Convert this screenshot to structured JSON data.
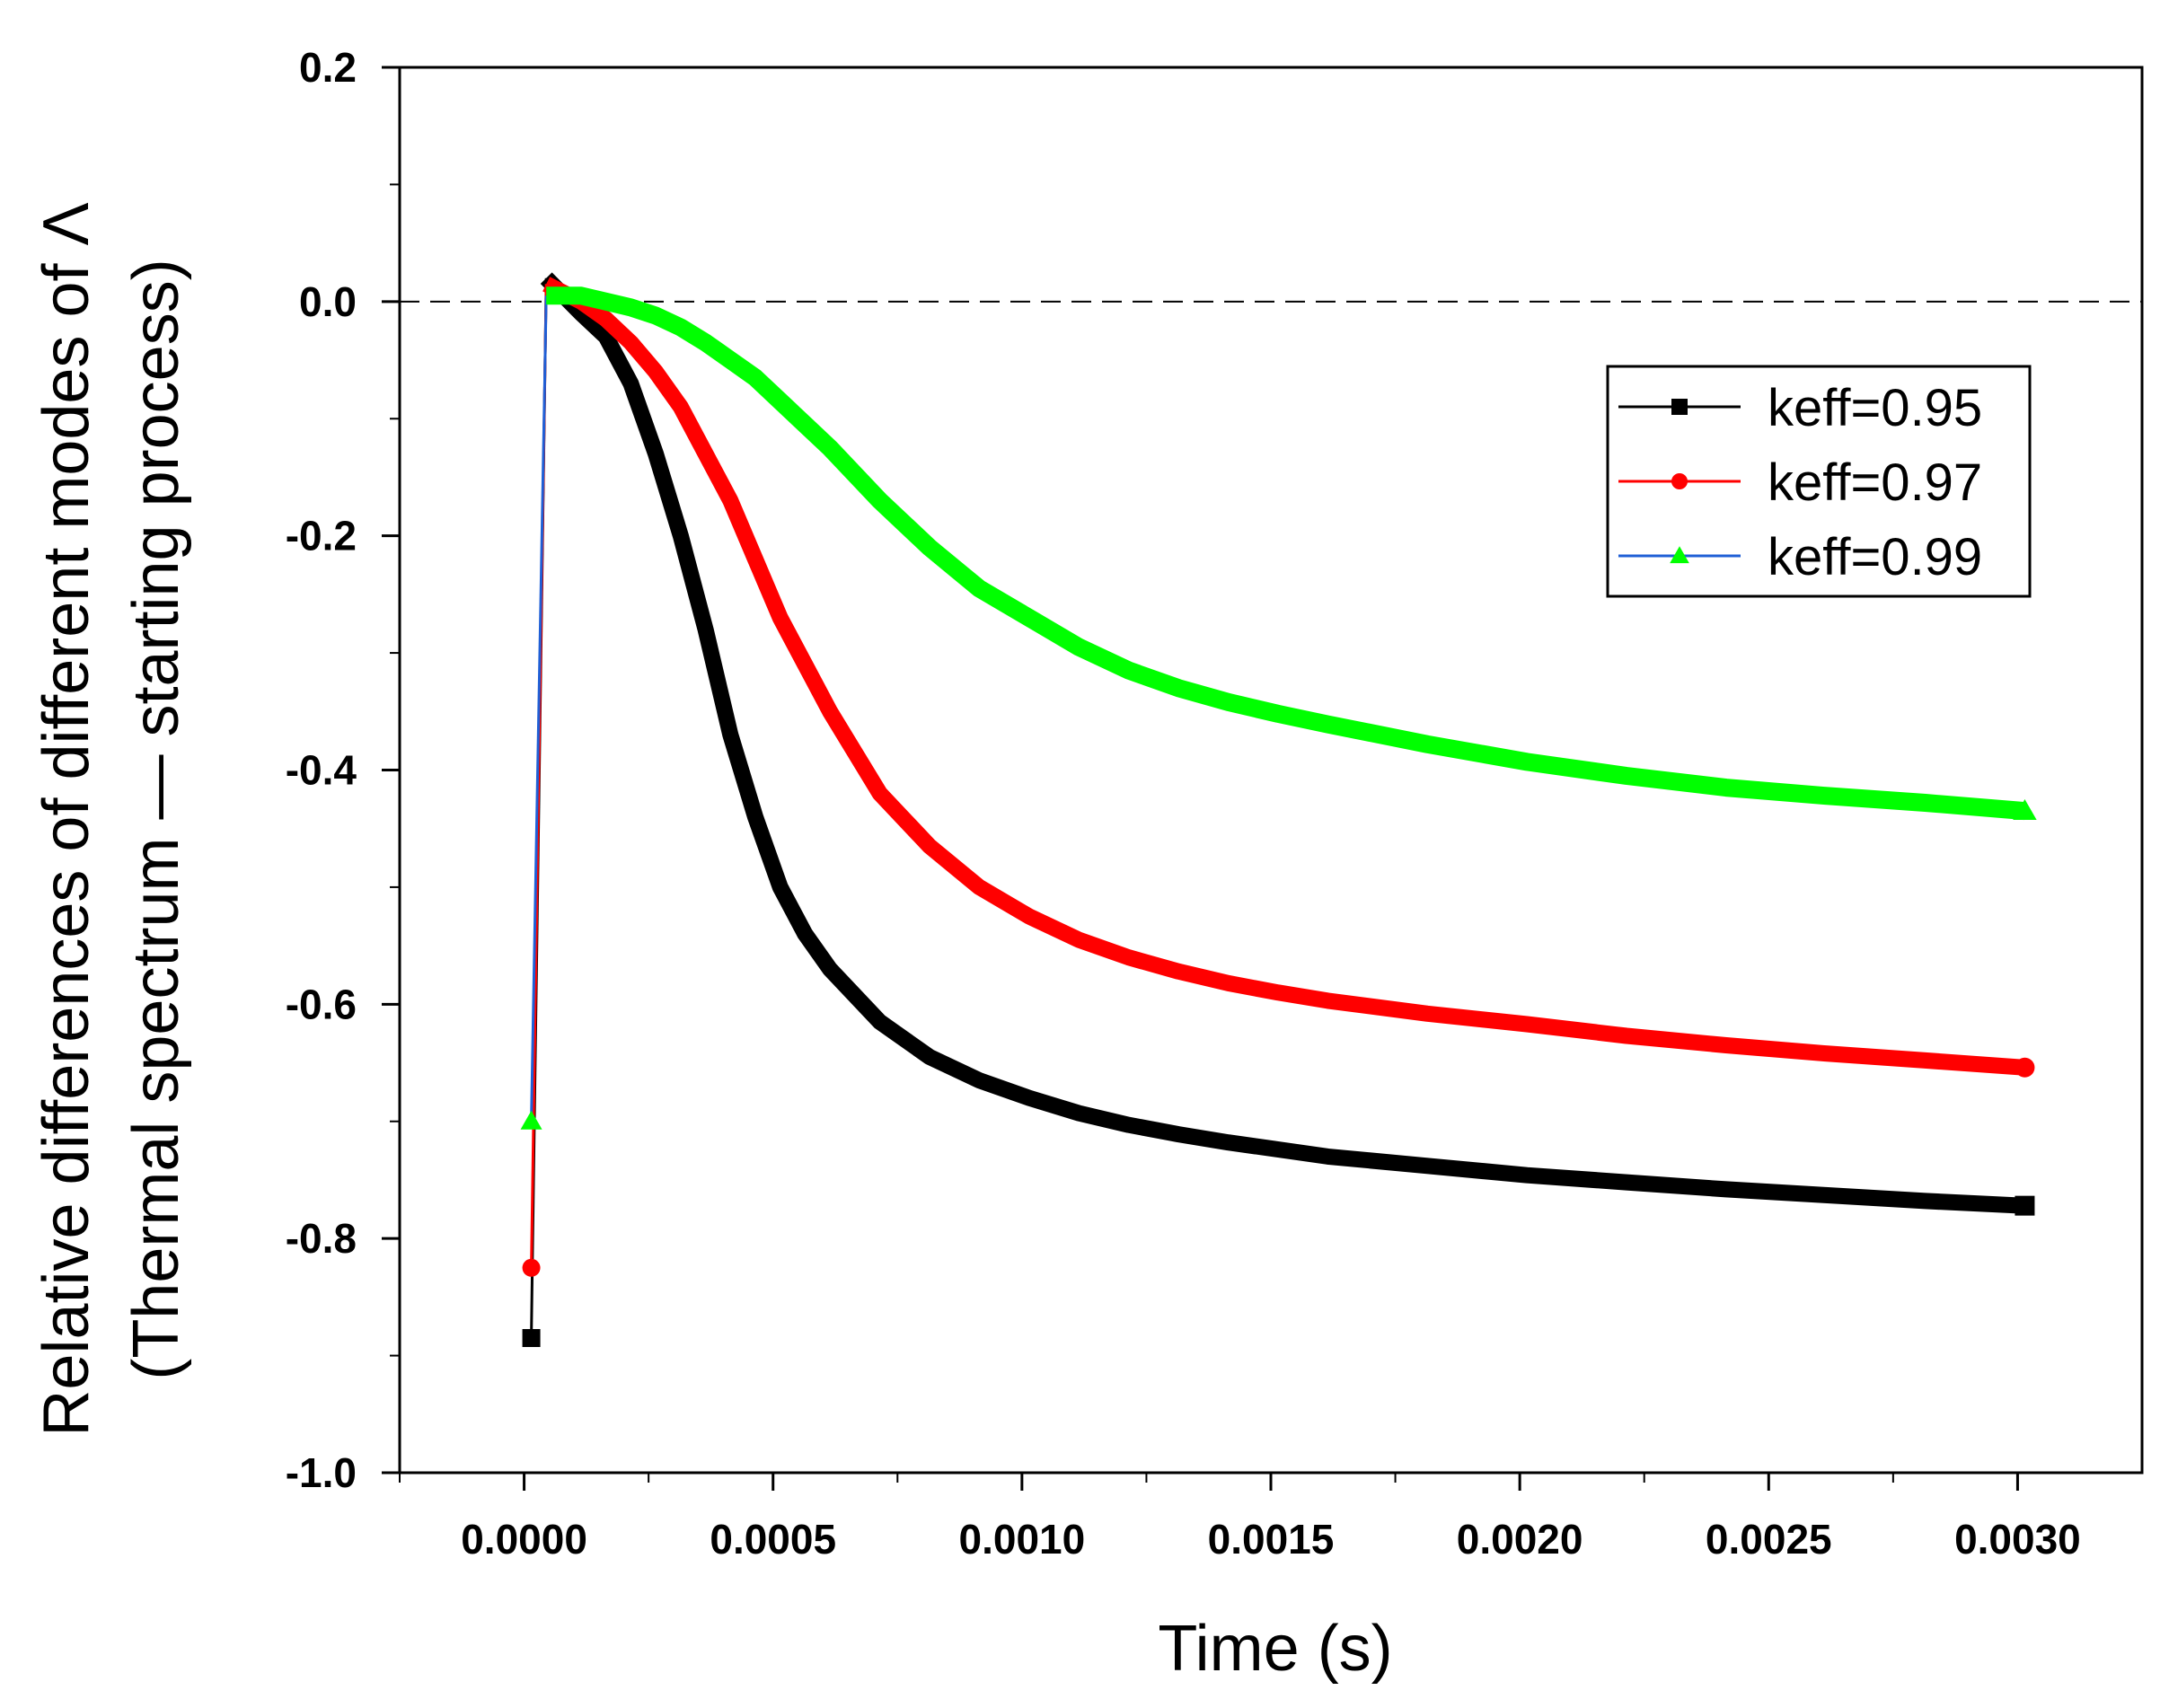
{
  "chart_data": {
    "type": "line",
    "title": "",
    "xlabel": "Time (s)",
    "ylabel_line1": "Relative differences of different modes of Λ",
    "ylabel_line2": "(Thermal spectrum — starting process)",
    "xlim": [
      -0.00025,
      0.00325
    ],
    "ylim": [
      -1.0,
      0.2
    ],
    "xticks": [
      0.0,
      0.0005,
      0.001,
      0.0015,
      0.002,
      0.0025,
      0.003
    ],
    "xtick_labels": [
      "0.0000",
      "0.0005",
      "0.0010",
      "0.0015",
      "0.0020",
      "0.0025",
      "0.0030"
    ],
    "yticks": [
      0.2,
      0.0,
      -0.2,
      -0.4,
      -0.6,
      -0.8,
      -1.0
    ],
    "ytick_labels": [
      "0.2",
      "0.0",
      "-0.2",
      "-0.4",
      "-0.6",
      "-0.8",
      "-1.0"
    ],
    "reference_line_y": 0.0,
    "legend_position": "upper-right",
    "series": [
      {
        "name": "keff=0.95",
        "color": "#000000",
        "marker": "square",
        "x": [
          0.0,
          3e-05,
          0.0001,
          0.00015,
          0.0002,
          0.00025,
          0.0003,
          0.00035,
          0.0004,
          0.00045,
          0.0005,
          0.00055,
          0.0006,
          0.0007,
          0.0008,
          0.0009,
          0.001,
          0.0011,
          0.0012,
          0.0013,
          0.0014,
          0.0015,
          0.0016,
          0.0018,
          0.002,
          0.0022,
          0.0024,
          0.0026,
          0.0028,
          0.003
        ],
        "y": [
          -0.885,
          0.02,
          -0.01,
          -0.03,
          -0.07,
          -0.13,
          -0.2,
          -0.28,
          -0.37,
          -0.44,
          -0.5,
          -0.54,
          -0.57,
          -0.615,
          -0.645,
          -0.665,
          -0.68,
          -0.693,
          -0.703,
          -0.711,
          -0.718,
          -0.724,
          -0.73,
          -0.738,
          -0.746,
          -0.752,
          -0.758,
          -0.763,
          -0.768,
          -0.772
        ]
      },
      {
        "name": "keff=0.97",
        "color": "#ff0000",
        "marker": "circle",
        "x": [
          0.0,
          3e-05,
          0.0001,
          0.00015,
          0.0002,
          0.00025,
          0.0003,
          0.00035,
          0.0004,
          0.00045,
          0.0005,
          0.00055,
          0.0006,
          0.0007,
          0.0008,
          0.0009,
          0.001,
          0.0011,
          0.0012,
          0.0013,
          0.0014,
          0.0015,
          0.0016,
          0.0018,
          0.002,
          0.0022,
          0.0024,
          0.0026,
          0.0028,
          0.003
        ],
        "y": [
          -0.825,
          0.015,
          0.0,
          -0.015,
          -0.035,
          -0.06,
          -0.09,
          -0.13,
          -0.17,
          -0.22,
          -0.27,
          -0.31,
          -0.35,
          -0.42,
          -0.465,
          -0.5,
          -0.525,
          -0.545,
          -0.56,
          -0.572,
          -0.582,
          -0.59,
          -0.597,
          -0.608,
          -0.617,
          -0.627,
          -0.635,
          -0.642,
          -0.648,
          -0.654
        ]
      },
      {
        "name": "keff=0.99",
        "color": "#00ff00",
        "line_color": "#1f5fd6",
        "marker": "triangle",
        "x": [
          0.0,
          3e-05,
          0.0001,
          0.00015,
          0.0002,
          0.00025,
          0.0003,
          0.00035,
          0.0004,
          0.00045,
          0.0005,
          0.00055,
          0.0006,
          0.0007,
          0.0008,
          0.0009,
          0.001,
          0.0011,
          0.0012,
          0.0013,
          0.0014,
          0.0015,
          0.0016,
          0.0018,
          0.002,
          0.0022,
          0.0024,
          0.0026,
          0.0028,
          0.003
        ],
        "y": [
          -0.7,
          0.005,
          0.005,
          0.0,
          -0.005,
          -0.012,
          -0.022,
          -0.035,
          -0.05,
          -0.065,
          -0.085,
          -0.105,
          -0.125,
          -0.17,
          -0.21,
          -0.245,
          -0.27,
          -0.295,
          -0.315,
          -0.33,
          -0.342,
          -0.352,
          -0.361,
          -0.378,
          -0.393,
          -0.405,
          -0.415,
          -0.422,
          -0.428,
          -0.435
        ]
      }
    ]
  }
}
